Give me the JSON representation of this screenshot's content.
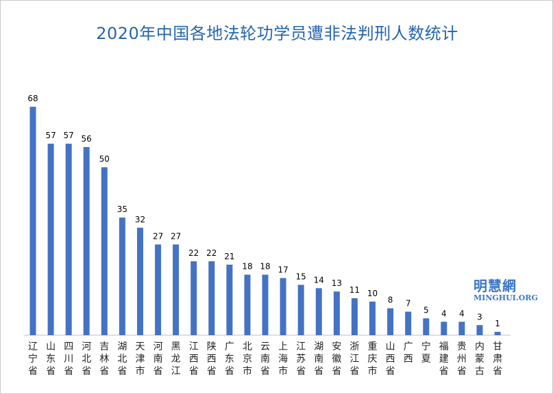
{
  "chart_data": {
    "type": "bar",
    "title": "2020年中国各地法轮功学员遭非法判刑人数统计",
    "categories": [
      "辽宁省",
      "山东省",
      "四川省",
      "河北省",
      "吉林省",
      "湖北省",
      "天津市",
      "河南省",
      "黑龙江",
      "江西省",
      "陕西省",
      "广东省",
      "北京市",
      "云南省",
      "上海市",
      "江苏省",
      "湖南省",
      "安徽省",
      "浙江省",
      "重庆市",
      "山西省",
      "广西",
      "宁夏",
      "福建省",
      "贵州省",
      "内蒙古",
      "甘肃省"
    ],
    "values": [
      68,
      57,
      57,
      56,
      50,
      35,
      32,
      27,
      27,
      22,
      22,
      21,
      18,
      18,
      17,
      15,
      14,
      13,
      11,
      10,
      8,
      7,
      5,
      4,
      4,
      3,
      1
    ],
    "xlabel": "",
    "ylabel": "",
    "ylim": [
      0,
      68
    ],
    "grid": false,
    "legend": "none",
    "bar_color": "#4472c4",
    "title_color": "#2565ae"
  },
  "watermark": {
    "name_cn": "明慧網",
    "name_en": "MINGHUI.ORG",
    "color": "#3d76c7"
  }
}
